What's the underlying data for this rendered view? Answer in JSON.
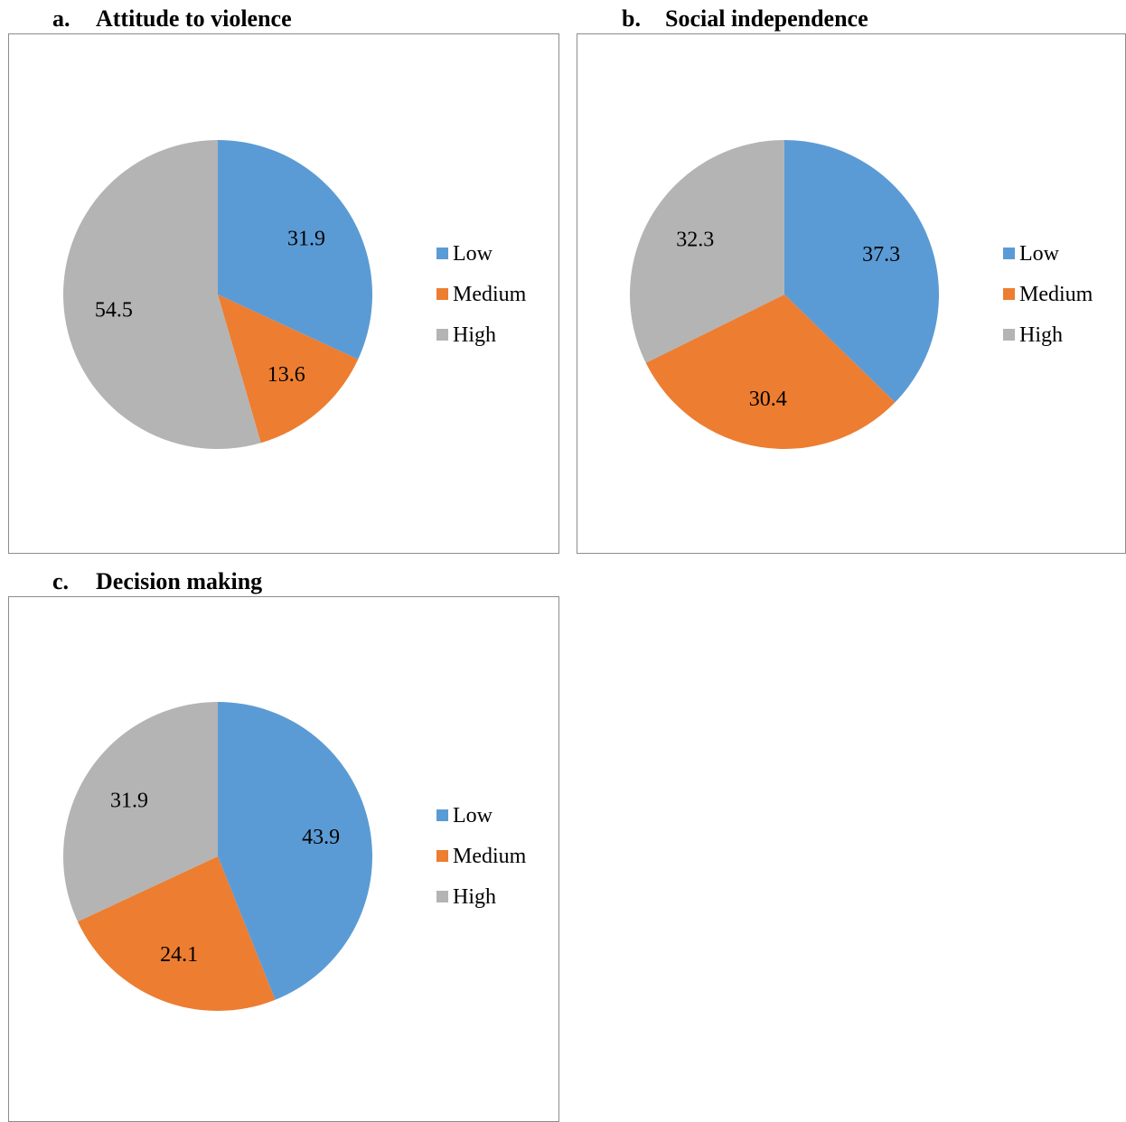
{
  "colors": {
    "low": "#5B9BD5",
    "medium": "#ED7D31",
    "high": "#B4B4B4"
  },
  "chart_data": [
    {
      "type": "pie",
      "letter": "a.",
      "title": "Attitude to violence",
      "categories": [
        "Low",
        "Medium",
        "High"
      ],
      "values": [
        31.9,
        13.6,
        54.5
      ],
      "value_labels": [
        "31.9",
        "13.6",
        "54.5"
      ],
      "colors": [
        "#5B9BD5",
        "#ED7D31",
        "#B4B4B4"
      ],
      "legend": [
        "Low",
        "Medium",
        "High"
      ],
      "legend_position": "right",
      "start_angle": "top",
      "direction": "clockwise"
    },
    {
      "type": "pie",
      "letter": "b.",
      "title": "Social independence",
      "categories": [
        "Low",
        "Medium",
        "High"
      ],
      "values": [
        37.3,
        30.4,
        32.3
      ],
      "value_labels": [
        "37.3",
        "30.4",
        "32.3"
      ],
      "colors": [
        "#5B9BD5",
        "#ED7D31",
        "#B4B4B4"
      ],
      "legend": [
        "Low",
        "Medium",
        "High"
      ],
      "legend_position": "right",
      "start_angle": "top",
      "direction": "clockwise"
    },
    {
      "type": "pie",
      "letter": "c.",
      "title": "Decision making",
      "categories": [
        "Low",
        "Medium",
        "High"
      ],
      "values": [
        43.9,
        24.1,
        31.9
      ],
      "value_labels": [
        "43.9",
        "24.1",
        "31.9"
      ],
      "colors": [
        "#5B9BD5",
        "#ED7D31",
        "#B4B4B4"
      ],
      "legend": [
        "Low",
        "Medium",
        "High"
      ],
      "legend_position": "right",
      "start_angle": "top",
      "direction": "clockwise"
    }
  ]
}
